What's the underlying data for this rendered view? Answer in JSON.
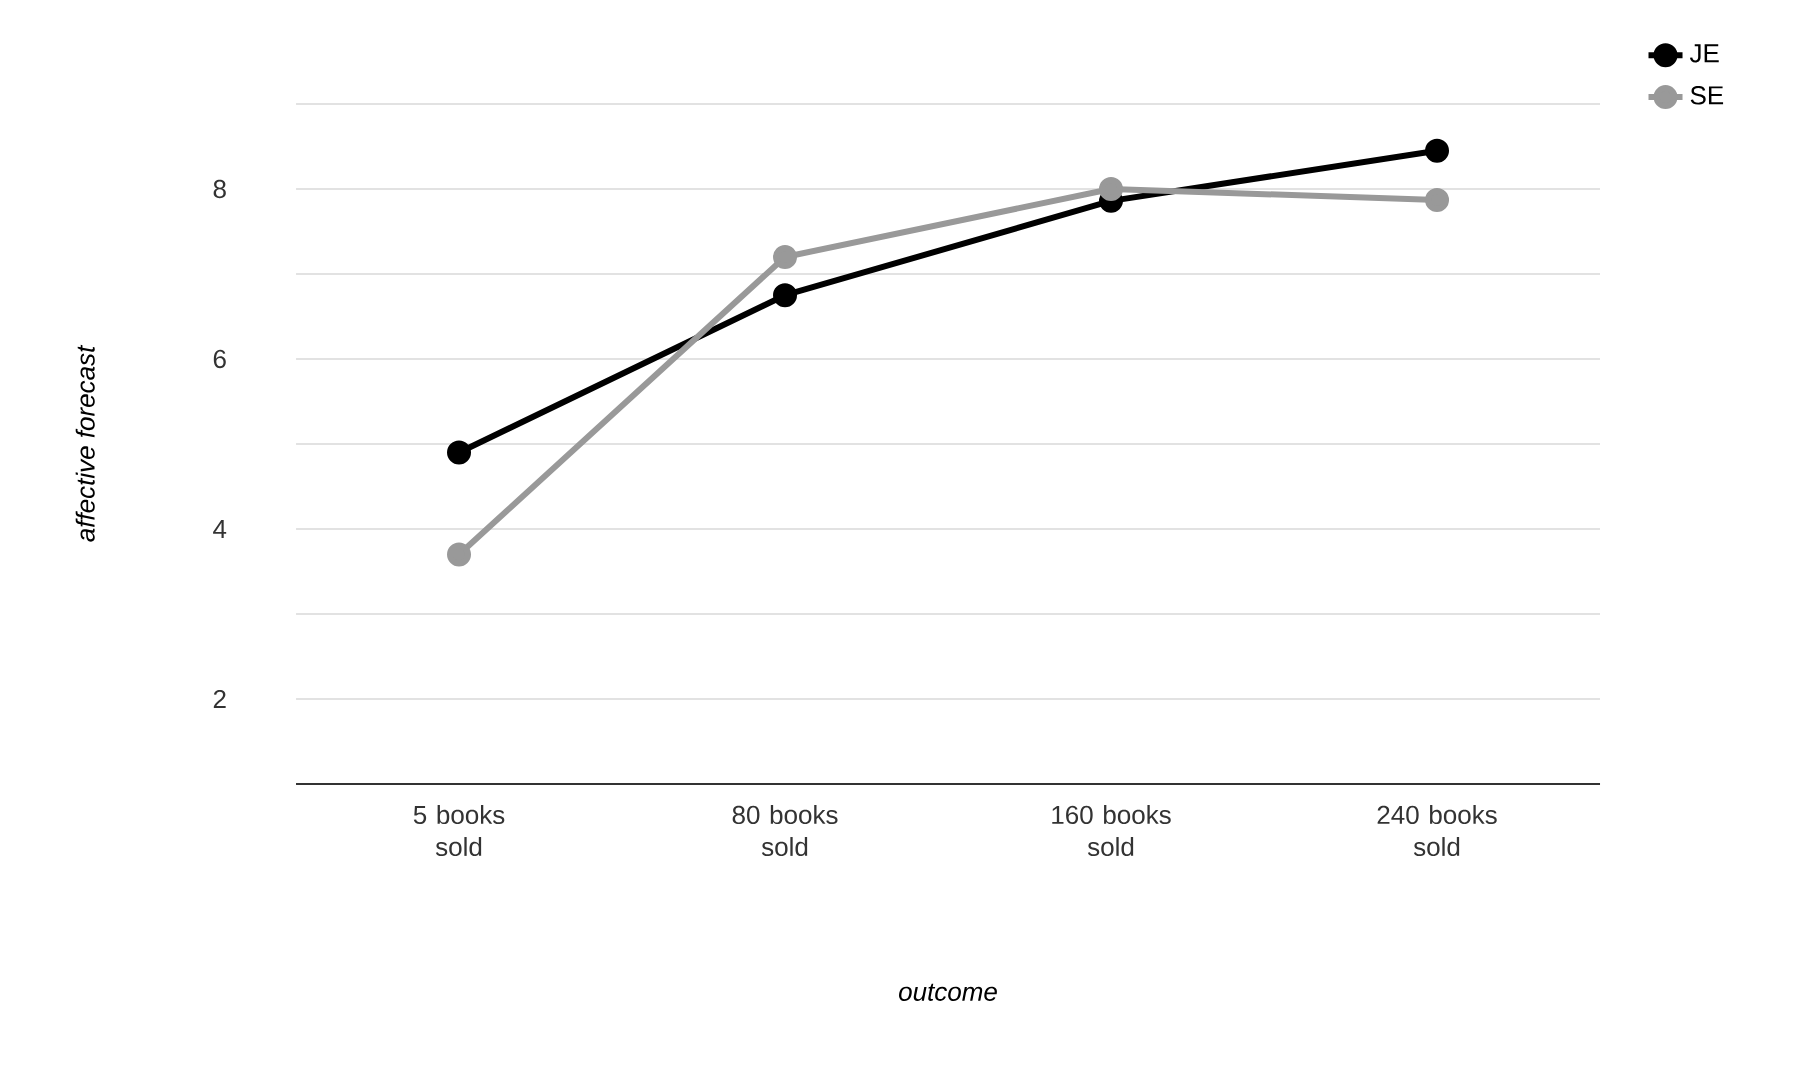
{
  "chart_data": {
    "type": "line",
    "xlabel": "outcome",
    "ylabel": "affective forecast",
    "categories": [
      "5 books sold",
      "80 books sold",
      "160 books sold",
      "240 books sold"
    ],
    "series": [
      {
        "name": "JE",
        "color": "#000000",
        "values": [
          4.9,
          6.75,
          7.86,
          8.45
        ]
      },
      {
        "name": "SE",
        "color": "#999999",
        "values": [
          3.7,
          7.2,
          8.0,
          7.87
        ]
      }
    ],
    "ylim": [
      1,
      9
    ],
    "yticks": [
      {
        "value": 1,
        "label": null
      },
      2,
      {
        "value": 3,
        "label": null
      },
      4,
      {
        "value": 5,
        "label": null
      },
      6,
      {
        "value": 7,
        "label": null
      },
      8,
      {
        "value": 9,
        "label": null
      }
    ],
    "grid": "y",
    "legend": "top right",
    "marker": "circle",
    "line_style": "solid"
  }
}
